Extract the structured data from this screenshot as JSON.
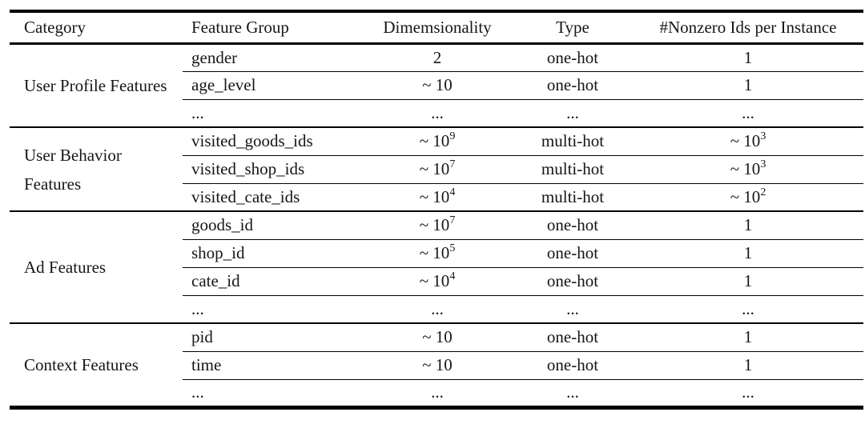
{
  "table": {
    "columns": [
      "Category",
      "Feature Group",
      "Dimemsionality",
      "Type",
      "#Nonzero Ids per Instance"
    ],
    "sections": [
      {
        "category": "User Profile Features",
        "rows": [
          {
            "feature": "gender",
            "dim": "2",
            "dim_sup": "",
            "type": "one-hot",
            "nonzero": "1",
            "nonzero_sup": ""
          },
          {
            "feature": "age_level",
            "dim": "~ 10",
            "dim_sup": "",
            "type": "one-hot",
            "nonzero": "1",
            "nonzero_sup": ""
          },
          {
            "feature": "...",
            "dim": "...",
            "dim_sup": "",
            "type": "...",
            "nonzero": "...",
            "nonzero_sup": ""
          }
        ]
      },
      {
        "category": "User Behavior Features",
        "rows": [
          {
            "feature": "visited_goods_ids",
            "dim": "~ 10",
            "dim_sup": "9",
            "type": "multi-hot",
            "nonzero": "~ 10",
            "nonzero_sup": "3"
          },
          {
            "feature": "visited_shop_ids",
            "dim": "~ 10",
            "dim_sup": "7",
            "type": "multi-hot",
            "nonzero": "~ 10",
            "nonzero_sup": "3"
          },
          {
            "feature": "visited_cate_ids",
            "dim": "~ 10",
            "dim_sup": "4",
            "type": "multi-hot",
            "nonzero": "~ 10",
            "nonzero_sup": "2"
          }
        ]
      },
      {
        "category": "Ad Features",
        "rows": [
          {
            "feature": "goods_id",
            "dim": "~ 10",
            "dim_sup": "7",
            "type": "one-hot",
            "nonzero": "1",
            "nonzero_sup": ""
          },
          {
            "feature": "shop_id",
            "dim": "~ 10",
            "dim_sup": "5",
            "type": "one-hot",
            "nonzero": "1",
            "nonzero_sup": ""
          },
          {
            "feature": "cate_id",
            "dim": "~ 10",
            "dim_sup": "4",
            "type": "one-hot",
            "nonzero": "1",
            "nonzero_sup": ""
          },
          {
            "feature": "...",
            "dim": "...",
            "dim_sup": "",
            "type": "...",
            "nonzero": "...",
            "nonzero_sup": ""
          }
        ]
      },
      {
        "category": "Context Features",
        "rows": [
          {
            "feature": "pid",
            "dim": "~ 10",
            "dim_sup": "",
            "type": "one-hot",
            "nonzero": "1",
            "nonzero_sup": ""
          },
          {
            "feature": "time",
            "dim": "~ 10",
            "dim_sup": "",
            "type": "one-hot",
            "nonzero": "1",
            "nonzero_sup": ""
          },
          {
            "feature": "...",
            "dim": "...",
            "dim_sup": "",
            "type": "...",
            "nonzero": "...",
            "nonzero_sup": ""
          }
        ]
      }
    ]
  },
  "colors": {
    "text": "#161616",
    "rule": "#000000",
    "background": "#ffffff"
  }
}
